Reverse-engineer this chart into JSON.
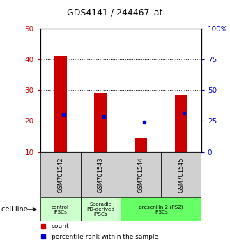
{
  "title": "GDS4141 / 244467_at",
  "samples": [
    "GSM701542",
    "GSM701543",
    "GSM701544",
    "GSM701545"
  ],
  "bar_values": [
    41.2,
    29.2,
    14.5,
    28.5
  ],
  "percentile_values": [
    30.2,
    28.5,
    24.2,
    31.2
  ],
  "bar_color": "#cc0000",
  "percentile_color": "#0000cc",
  "ylim_left": [
    10,
    50
  ],
  "ylim_right": [
    0,
    100
  ],
  "yticks_left": [
    10,
    20,
    30,
    40,
    50
  ],
  "yticks_right": [
    0,
    25,
    50,
    75,
    100
  ],
  "ytick_labels_right": [
    "0",
    "25",
    "50",
    "75",
    "100%"
  ],
  "cell_line_label": "cell line",
  "legend_count": "count",
  "legend_percentile": "percentile rank within the sample",
  "sample_bg_color": "#d0d0d0",
  "group_data": [
    {
      "span": [
        0,
        1
      ],
      "label": "control\nIPSCs",
      "color": "#ccffcc"
    },
    {
      "span": [
        1,
        2
      ],
      "label": "Sporadic\nPD-derived\niPSCs",
      "color": "#ccffcc"
    },
    {
      "span": [
        2,
        4
      ],
      "label": "presenilin 2 (PS2)\niPSCs",
      "color": "#66ff66"
    }
  ],
  "plot_bg": "#ffffff",
  "bar_width": 0.32
}
